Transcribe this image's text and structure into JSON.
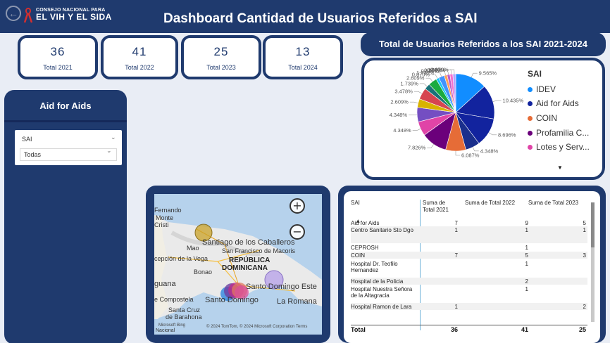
{
  "header": {
    "logo_line1": "CONSEJO NACIONAL PARA",
    "logo_line2": "EL VIH Y EL SIDA",
    "title": "Dashboard Cantidad de Usuarios Referidos a SAI"
  },
  "kpis": [
    {
      "value": "36",
      "label": "Total 2021"
    },
    {
      "value": "41",
      "label": "Total 2022"
    },
    {
      "value": "25",
      "label": "Total 2023"
    },
    {
      "value": "13",
      "label": "Total 2024"
    }
  ],
  "pie_panel": {
    "title": "Total de Usuarios Referidos a los SAI 2021-2024",
    "legend_title": "SAI",
    "legend": [
      {
        "label": "IDEV",
        "color": "#118DFF"
      },
      {
        "label": "Aid for Aids",
        "color": "#12239E"
      },
      {
        "label": "COIN",
        "color": "#E66C37"
      },
      {
        "label": "Profamilia C...",
        "color": "#6B007B"
      },
      {
        "label": "Lotes y Serv...",
        "color": "#E044A7"
      }
    ],
    "more_icon": "caret-down-icon"
  },
  "chart_data": {
    "type": "pie",
    "title": "Total de Usuarios Referidos a los SAI 2021-2024",
    "legend_title": "SAI",
    "slices": [
      {
        "label": "IDEV",
        "value": 9.565,
        "color": "#118DFF"
      },
      {
        "label": "",
        "value": 10.435,
        "color": "#12239E"
      },
      {
        "label": "",
        "value": 8.696,
        "color": "#12239E"
      },
      {
        "label": "",
        "value": 4.348,
        "color": "#1A2F8C"
      },
      {
        "label": "",
        "value": 6.087,
        "color": "#E66C37"
      },
      {
        "label": "",
        "value": 7.826,
        "color": "#6B007B"
      },
      {
        "label": "",
        "value": 4.348,
        "color": "#E044A7"
      },
      {
        "label": "",
        "value": 4.348,
        "color": "#744EC2"
      },
      {
        "label": "",
        "value": 2.609,
        "color": "#D9B300"
      },
      {
        "label": "",
        "value": 3.478,
        "color": "#D64550"
      },
      {
        "label": "",
        "value": 1.739,
        "color": "#197278"
      },
      {
        "label": "",
        "value": 2.609,
        "color": "#1AAB40"
      },
      {
        "label": "",
        "value": 0.87,
        "color": "#15C6F4"
      },
      {
        "label": "",
        "value": 1.739,
        "color": "#4092FF"
      },
      {
        "label": "",
        "value": 0.87,
        "color": "#FFA058"
      },
      {
        "label": "",
        "value": 0.87,
        "color": "#BE5DC9"
      },
      {
        "label": "",
        "value": 0.87,
        "color": "#F472D0"
      },
      {
        "label": "",
        "value": 0.87,
        "color": "#B5A1FF"
      }
    ],
    "data_labels": [
      "9.565%",
      "10.435%",
      "8.696%",
      "4.348%",
      "6.087%",
      "7.826%",
      "4.348%",
      "4.348%",
      "2.609%",
      "3.478%",
      "1.739%",
      "2.609%",
      "0.870%",
      "1.739%",
      "0.870%",
      "0.870%",
      "0.870%",
      "0.870%"
    ]
  },
  "side_panel": {
    "title": "Aid for Aids",
    "slicer_label": "SAI",
    "slicer_value": "Todas",
    "chevron_icon": "chevron-down-icon"
  },
  "map": {
    "labels": {
      "fernando": "Fernando",
      "monte": "Monte",
      "cristi": "Cristi",
      "santiago": "Santiago de los Caballeros",
      "sfm": "San Francisco de Macoris",
      "mao": "Mao",
      "vega": "cepción de la Vega",
      "rep1": "REPÚBLICA",
      "rep2": "DOMINICANA",
      "bonao": "Bonao",
      "guana": "guana",
      "sde": "Santo Domingo Este",
      "sdo": "Santo Domingo",
      "compostela": "e Compostela",
      "cruz1": "Santa Cruz",
      "cruz2": "de Barahona",
      "romana": "La Romana",
      "nacional": "Nacional"
    },
    "bing_text": "Microsoft Bing",
    "copyright": "© 2024 TomTom, © 2024 Microsoft Corporation  Terms",
    "zoom_in": "+",
    "zoom_out": "−"
  },
  "table": {
    "headers": [
      "SAI",
      "Suma de Total 2021",
      "Suma de Total 2022",
      "Suma de Total 2023"
    ],
    "rows": [
      [
        "Aid for Aids",
        "7",
        "9",
        "5"
      ],
      [
        "Centro Sanitario Sto Dgo",
        "1",
        "1",
        "1"
      ],
      [
        "CEPROSH",
        "",
        "1",
        ""
      ],
      [
        "COIN",
        "7",
        "5",
        "3"
      ],
      [
        "Hospital Dr. Teofilo Hernandez",
        "",
        "1",
        ""
      ],
      [
        "Hospital de la Policia",
        "",
        "2",
        ""
      ],
      [
        "Hospital Nuestra Señora de la Altagracia",
        "",
        "1",
        ""
      ],
      [
        "Hospital Ramon de Lara",
        "1",
        "",
        "2"
      ]
    ],
    "total": [
      "Total",
      "36",
      "41",
      "25"
    ]
  }
}
